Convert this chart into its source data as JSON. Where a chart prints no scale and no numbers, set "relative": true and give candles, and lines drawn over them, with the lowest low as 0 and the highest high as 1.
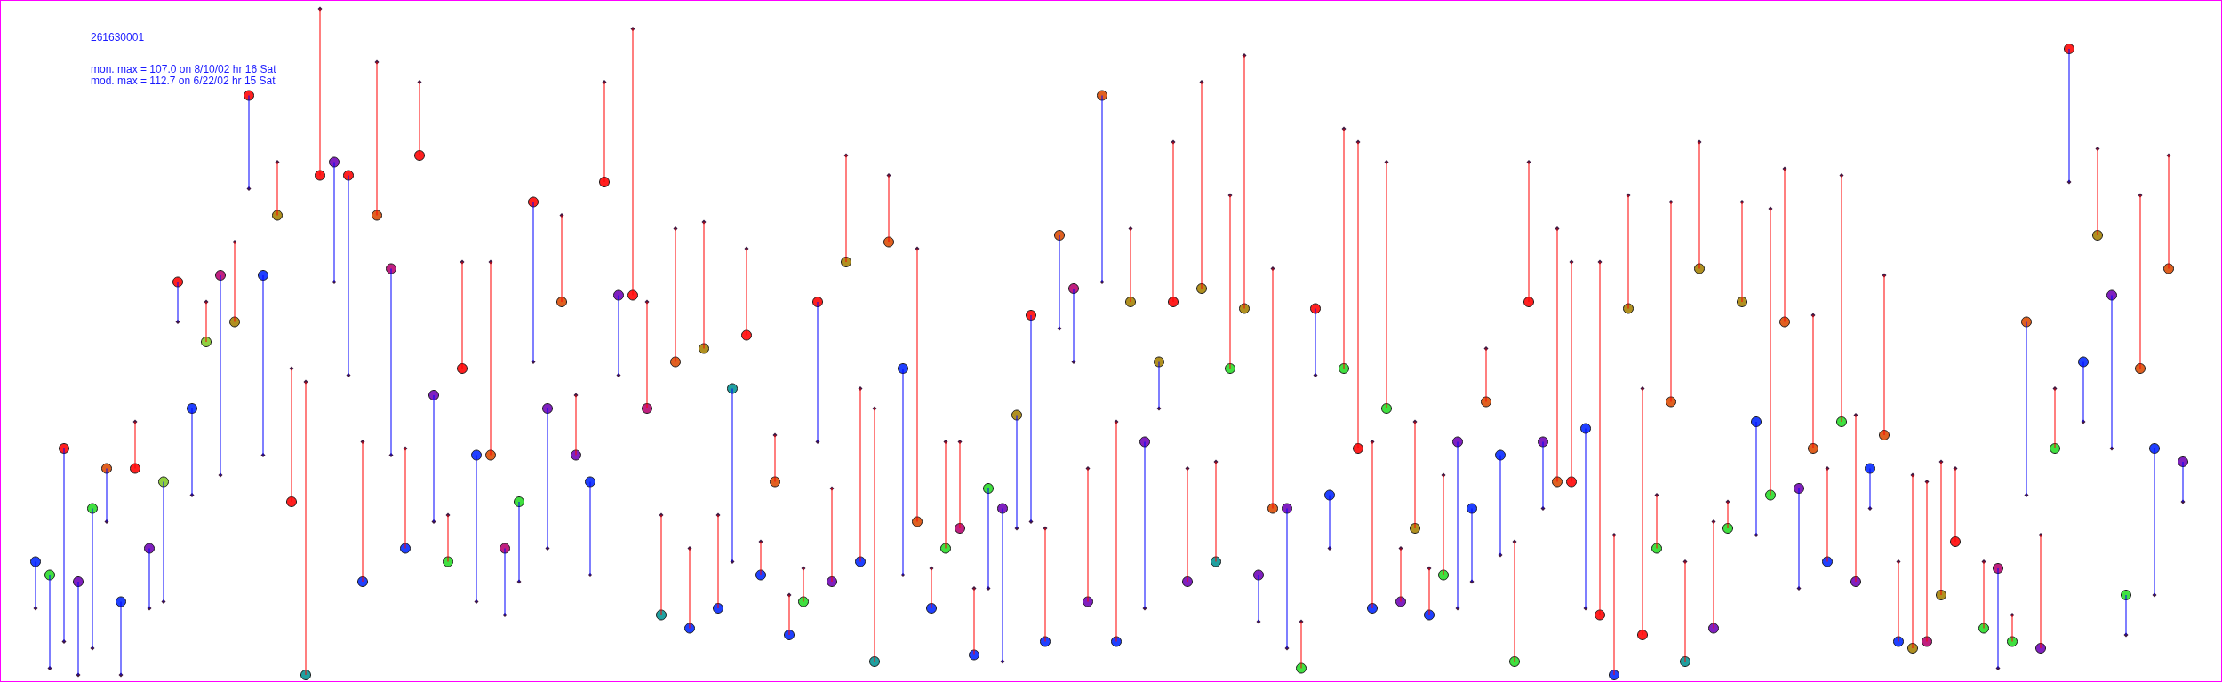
{
  "chart_data": {
    "type": "candlestick",
    "relative": true,
    "title": "261630001",
    "annotations": [
      "mon. max = 107.0 on 8/10/02 hr 16 Sat",
      "mod. max = 112.7 on 6/22/02 hr 15 Sat"
    ],
    "categories": [
      null,
      null,
      null,
      null,
      null,
      null,
      null,
      null,
      null,
      null,
      null,
      null,
      null,
      null,
      null,
      null,
      null,
      null,
      null,
      null,
      null,
      null,
      null,
      null,
      null,
      null,
      null,
      null,
      null,
      null,
      null,
      null,
      null,
      null,
      null,
      null,
      null,
      null,
      null,
      null,
      null,
      null,
      null,
      null,
      null,
      null,
      null,
      null,
      null,
      null,
      null,
      null,
      null,
      null,
      null,
      null,
      null,
      null,
      null,
      null,
      null,
      null,
      null,
      null,
      null,
      null,
      null,
      null,
      null,
      null,
      null,
      null,
      null,
      null,
      null,
      null,
      null,
      null,
      null,
      null,
      null,
      null,
      null,
      null,
      null,
      null,
      null,
      null,
      null,
      null,
      null,
      null,
      null,
      null,
      null,
      null,
      null,
      null,
      null,
      null,
      null,
      null,
      null,
      null,
      null,
      null,
      null,
      null,
      null,
      null,
      null,
      null,
      null,
      null,
      null,
      null,
      null,
      null,
      null,
      null,
      null,
      null,
      null,
      null,
      null,
      null,
      null,
      null,
      null,
      null,
      null,
      null,
      null,
      null,
      null,
      null,
      null,
      null,
      null,
      null,
      null,
      null,
      null,
      null,
      null,
      null,
      null,
      null,
      null,
      null,
      null,
      null
    ],
    "ohlc": [
      [
        0.17,
        0.17,
        0.1,
        0.1
      ],
      [
        0.15,
        0.15,
        0.01,
        0.01
      ],
      [
        0.34,
        0.34,
        0.05,
        0.05
      ],
      [
        0.14,
        0.14,
        0.0,
        0.0
      ],
      [
        0.25,
        0.25,
        0.04,
        0.04
      ],
      [
        0.31,
        0.31,
        0.23,
        0.23
      ],
      [
        0.11,
        0.11,
        0.0,
        0.0
      ],
      [
        0.31,
        0.38,
        0.31,
        0.38
      ],
      [
        0.19,
        0.19,
        0.1,
        0.1
      ],
      [
        0.29,
        0.29,
        0.11,
        0.11
      ],
      [
        0.59,
        0.59,
        0.53,
        0.53
      ],
      [
        0.4,
        0.4,
        0.27,
        0.27
      ],
      [
        0.5,
        0.56,
        0.5,
        0.56
      ],
      [
        0.6,
        0.6,
        0.3,
        0.3
      ],
      [
        0.53,
        0.65,
        0.53,
        0.65
      ],
      [
        0.87,
        0.87,
        0.73,
        0.73
      ],
      [
        0.6,
        0.6,
        0.33,
        0.33
      ],
      [
        0.69,
        0.77,
        0.69,
        0.77
      ],
      [
        0.26,
        0.46,
        0.26,
        0.46
      ],
      [
        0.0,
        0.44,
        0.0,
        0.44
      ],
      [
        0.75,
        1.0,
        0.75,
        1.0
      ],
      [
        0.77,
        0.77,
        0.59,
        0.59
      ],
      [
        0.75,
        0.75,
        0.45,
        0.45
      ],
      [
        0.14,
        0.35,
        0.14,
        0.35
      ],
      [
        0.69,
        0.92,
        0.69,
        0.92
      ],
      [
        0.61,
        0.61,
        0.33,
        0.33
      ],
      [
        0.19,
        0.34,
        0.19,
        0.34
      ],
      [
        0.78,
        0.89,
        0.78,
        0.89
      ],
      [
        0.42,
        0.42,
        0.23,
        0.23
      ],
      [
        0.17,
        0.24,
        0.17,
        0.24
      ],
      [
        0.46,
        0.62,
        0.46,
        0.62
      ],
      [
        0.33,
        0.33,
        0.11,
        0.11
      ],
      [
        0.33,
        0.62,
        0.33,
        0.62
      ],
      [
        0.19,
        0.19,
        0.09,
        0.09
      ],
      [
        0.26,
        0.26,
        0.14,
        0.14
      ],
      [
        0.71,
        0.71,
        0.47,
        0.47
      ],
      [
        0.4,
        0.4,
        0.19,
        0.19
      ],
      [
        0.56,
        0.69,
        0.56,
        0.69
      ],
      [
        0.33,
        0.42,
        0.33,
        0.42
      ],
      [
        0.29,
        0.29,
        0.15,
        0.15
      ],
      [
        0.74,
        0.89,
        0.74,
        0.89
      ],
      [
        0.57,
        0.57,
        0.45,
        0.45
      ],
      [
        0.57,
        0.97,
        0.57,
        0.97
      ],
      [
        0.4,
        0.56,
        0.4,
        0.56
      ],
      [
        0.09,
        0.24,
        0.09,
        0.24
      ],
      [
        0.47,
        0.67,
        0.47,
        0.67
      ],
      [
        0.07,
        0.19,
        0.07,
        0.19
      ],
      [
        0.49,
        0.68,
        0.49,
        0.68
      ],
      [
        0.1,
        0.24,
        0.1,
        0.24
      ],
      [
        0.43,
        0.43,
        0.17,
        0.17
      ],
      [
        0.51,
        0.64,
        0.51,
        0.64
      ],
      [
        0.15,
        0.2,
        0.15,
        0.2
      ],
      [
        0.29,
        0.36,
        0.29,
        0.36
      ],
      [
        0.06,
        0.12,
        0.06,
        0.12
      ],
      [
        0.11,
        0.16,
        0.11,
        0.16
      ],
      [
        0.56,
        0.56,
        0.35,
        0.35
      ],
      [
        0.14,
        0.28,
        0.14,
        0.28
      ],
      [
        0.62,
        0.78,
        0.62,
        0.78
      ],
      [
        0.17,
        0.43,
        0.17,
        0.43
      ],
      [
        0.02,
        0.4,
        0.02,
        0.4
      ],
      [
        0.65,
        0.75,
        0.65,
        0.75
      ],
      [
        0.46,
        0.46,
        0.15,
        0.15
      ],
      [
        0.23,
        0.64,
        0.23,
        0.64
      ],
      [
        0.1,
        0.16,
        0.1,
        0.16
      ],
      [
        0.19,
        0.35,
        0.19,
        0.35
      ],
      [
        0.22,
        0.35,
        0.22,
        0.35
      ],
      [
        0.03,
        0.13,
        0.03,
        0.13
      ],
      [
        0.28,
        0.28,
        0.13,
        0.13
      ],
      [
        0.25,
        0.25,
        0.02,
        0.02
      ],
      [
        0.39,
        0.39,
        0.22,
        0.22
      ],
      [
        0.54,
        0.54,
        0.23,
        0.23
      ],
      [
        0.05,
        0.22,
        0.05,
        0.22
      ],
      [
        0.66,
        0.66,
        0.52,
        0.52
      ],
      [
        0.58,
        0.58,
        0.47,
        0.47
      ],
      [
        0.11,
        0.31,
        0.11,
        0.31
      ],
      [
        0.87,
        0.87,
        0.59,
        0.59
      ],
      [
        0.05,
        0.38,
        0.05,
        0.38
      ],
      [
        0.56,
        0.67,
        0.56,
        0.67
      ],
      [
        0.35,
        0.35,
        0.1,
        0.1
      ],
      [
        0.47,
        0.47,
        0.4,
        0.4
      ],
      [
        0.56,
        0.8,
        0.56,
        0.8
      ],
      [
        0.14,
        0.31,
        0.14,
        0.31
      ],
      [
        0.58,
        0.89,
        0.58,
        0.89
      ],
      [
        0.17,
        0.32,
        0.17,
        0.32
      ],
      [
        0.46,
        0.72,
        0.46,
        0.72
      ],
      [
        0.55,
        0.93,
        0.55,
        0.93
      ],
      [
        0.15,
        0.15,
        0.08,
        0.08
      ],
      [
        0.25,
        0.61,
        0.25,
        0.61
      ],
      [
        0.25,
        0.25,
        0.04,
        0.04
      ],
      [
        0.01,
        0.08,
        0.01,
        0.08
      ],
      [
        0.55,
        0.55,
        0.45,
        0.45
      ],
      [
        0.27,
        0.27,
        0.19,
        0.19
      ],
      [
        0.46,
        0.82,
        0.46,
        0.82
      ],
      [
        0.34,
        0.8,
        0.34,
        0.8
      ],
      [
        0.1,
        0.35,
        0.1,
        0.35
      ],
      [
        0.4,
        0.77,
        0.4,
        0.77
      ],
      [
        0.11,
        0.19,
        0.11,
        0.19
      ],
      [
        0.22,
        0.38,
        0.22,
        0.38
      ],
      [
        0.09,
        0.16,
        0.09,
        0.16
      ],
      [
        0.15,
        0.3,
        0.15,
        0.3
      ],
      [
        0.35,
        0.35,
        0.1,
        0.1
      ],
      [
        0.25,
        0.25,
        0.14,
        0.14
      ],
      [
        0.41,
        0.49,
        0.41,
        0.49
      ],
      [
        0.33,
        0.33,
        0.18,
        0.18
      ],
      [
        0.02,
        0.2,
        0.02,
        0.2
      ],
      [
        0.56,
        0.77,
        0.56,
        0.77
      ],
      [
        0.35,
        0.35,
        0.25,
        0.25
      ],
      [
        0.29,
        0.67,
        0.29,
        0.67
      ],
      [
        0.29,
        0.62,
        0.29,
        0.62
      ],
      [
        0.37,
        0.37,
        0.1,
        0.1
      ],
      [
        0.09,
        0.62,
        0.09,
        0.62
      ],
      [
        0.0,
        0.21,
        0.0,
        0.21
      ],
      [
        0.55,
        0.72,
        0.55,
        0.72
      ],
      [
        0.06,
        0.43,
        0.06,
        0.43
      ],
      [
        0.19,
        0.27,
        0.19,
        0.27
      ],
      [
        0.41,
        0.71,
        0.41,
        0.71
      ],
      [
        0.02,
        0.17,
        0.02,
        0.17
      ],
      [
        0.61,
        0.8,
        0.61,
        0.8
      ],
      [
        0.07,
        0.23,
        0.07,
        0.23
      ],
      [
        0.22,
        0.26,
        0.22,
        0.26
      ],
      [
        0.56,
        0.71,
        0.56,
        0.71
      ],
      [
        0.38,
        0.38,
        0.21,
        0.21
      ],
      [
        0.27,
        0.7,
        0.27,
        0.7
      ],
      [
        0.53,
        0.76,
        0.53,
        0.76
      ],
      [
        0.28,
        0.28,
        0.13,
        0.13
      ],
      [
        0.34,
        0.54,
        0.34,
        0.54
      ],
      [
        0.17,
        0.31,
        0.17,
        0.31
      ],
      [
        0.38,
        0.75,
        0.38,
        0.75
      ],
      [
        0.14,
        0.39,
        0.14,
        0.39
      ],
      [
        0.31,
        0.31,
        0.25,
        0.25
      ],
      [
        0.36,
        0.6,
        0.36,
        0.6
      ],
      [
        0.05,
        0.17,
        0.05,
        0.17
      ],
      [
        0.04,
        0.3,
        0.04,
        0.3
      ],
      [
        0.05,
        0.29,
        0.05,
        0.29
      ],
      [
        0.12,
        0.32,
        0.12,
        0.32
      ],
      [
        0.2,
        0.31,
        0.2,
        0.31
      ],
      null,
      [
        0.07,
        0.17,
        0.07,
        0.17
      ],
      [
        0.16,
        0.16,
        0.01,
        0.01
      ],
      [
        0.05,
        0.09,
        0.05,
        0.09
      ],
      [
        0.53,
        0.53,
        0.27,
        0.27
      ],
      [
        0.04,
        0.21,
        0.04,
        0.21
      ],
      [
        0.34,
        0.43,
        0.34,
        0.43
      ],
      [
        0.94,
        0.94,
        0.74,
        0.74
      ],
      [
        0.47,
        0.47,
        0.38,
        0.38
      ],
      [
        0.66,
        0.79,
        0.66,
        0.79
      ],
      [
        0.57,
        0.57,
        0.34,
        0.34
      ],
      [
        0.12,
        0.12,
        0.06,
        0.06
      ],
      [
        0.46,
        0.72,
        0.46,
        0.72
      ],
      [
        0.34,
        0.34,
        0.12,
        0.12
      ],
      [
        0.61,
        0.78,
        0.61,
        0.78
      ],
      [
        0.32,
        0.32,
        0.26,
        0.26
      ]
    ],
    "colors": [
      "#0000ff",
      "#0000ff",
      "#0000ff",
      "#0000ff",
      "#0000ff",
      "#0000ff",
      "#0000ff",
      "#ff0000",
      "#0000ff",
      "#0000ff",
      "#0000ff",
      "#0000ff",
      "#ff0000",
      "#0000ff",
      "#ff0000",
      "#0000ff",
      "#0000ff",
      "#ff0000",
      "#ff0000",
      "#ff0000",
      "#ff0000",
      "#0000ff",
      "#0000ff",
      "#ff0000",
      "#ff0000",
      "#0000ff",
      "#ff0000",
      "#ff0000",
      "#0000ff",
      "#ff0000",
      "#ff0000",
      "#0000ff",
      "#ff0000",
      "#0000ff",
      "#0000ff",
      "#0000ff",
      "#0000ff",
      "#ff0000",
      "#ff0000",
      "#0000ff",
      "#ff0000",
      "#0000ff",
      "#ff0000",
      "#ff0000",
      "#ff0000",
      "#ff0000",
      "#ff0000",
      "#ff0000",
      "#ff0000",
      "#0000ff",
      "#ff0000",
      "#ff0000",
      "#ff0000",
      "#ff0000",
      "#ff0000",
      "#0000ff",
      "#ff0000",
      "#ff0000",
      "#ff0000",
      "#ff0000",
      "#ff0000",
      "#0000ff",
      "#ff0000",
      "#ff0000",
      "#ff0000",
      "#ff0000",
      "#ff0000",
      "#0000ff",
      "#0000ff",
      "#0000ff",
      "#0000ff",
      "#ff0000",
      "#0000ff",
      "#0000ff",
      "#ff0000",
      "#0000ff",
      "#ff0000",
      "#ff0000",
      "#0000ff",
      "#0000ff",
      "#ff0000",
      "#ff0000",
      "#ff0000",
      "#ff0000",
      "#ff0000",
      "#ff0000",
      "#0000ff",
      "#ff0000",
      "#0000ff",
      "#ff0000",
      "#0000ff",
      "#0000ff",
      "#ff0000",
      "#ff0000",
      "#ff0000",
      "#ff0000",
      "#ff0000",
      "#ff0000",
      "#ff0000",
      "#ff0000",
      "#0000ff",
      "#0000ff",
      "#ff0000",
      "#0000ff",
      "#ff0000",
      "#ff0000",
      "#0000ff",
      "#ff0000",
      "#ff0000",
      "#0000ff",
      "#ff0000",
      "#ff0000",
      "#ff0000",
      "#ff0000",
      "#ff0000",
      "#ff0000",
      "#ff0000",
      "#ff0000",
      "#ff0000",
      "#ff0000",
      "#ff0000",
      "#0000ff",
      "#ff0000",
      "#ff0000",
      "#0000ff",
      "#ff0000",
      "#ff0000",
      "#ff0000",
      "#ff0000",
      "#0000ff",
      "#ff0000",
      "#ff0000",
      "#ff0000",
      "#ff0000",
      "#ff0000",
      "#ff0000",
      null,
      "#ff0000",
      "#0000ff",
      "#ff0000",
      "#0000ff",
      "#ff0000",
      "#ff0000",
      "#0000ff",
      "#0000ff",
      "#ff0000",
      "#0000ff",
      "#0000ff",
      "#ff0000",
      "#0000ff",
      "#ff0000",
      "#0000ff"
    ],
    "series": [
      {
        "type": "scatter",
        "marker": "circle",
        "values": [
          0.17,
          0.15,
          0.34,
          0.14,
          0.25,
          0.31,
          0.11,
          0.31,
          0.19,
          0.29,
          0.59,
          0.4,
          0.5,
          0.6,
          0.53,
          0.87,
          0.6,
          0.69,
          0.26,
          0.0,
          0.75,
          0.77,
          0.75,
          0.14,
          0.69,
          0.61,
          0.19,
          0.78,
          0.42,
          0.17,
          0.46,
          0.33,
          0.33,
          0.19,
          0.26,
          0.71,
          0.4,
          0.56,
          0.33,
          0.29,
          0.74,
          0.57,
          0.57,
          0.4,
          0.09,
          0.47,
          0.07,
          0.49,
          0.1,
          0.43,
          0.51,
          0.15,
          0.29,
          0.06,
          0.11,
          0.56,
          0.14,
          0.62,
          0.17,
          0.02,
          0.65,
          0.46,
          0.23,
          0.1,
          0.19,
          0.22,
          0.03,
          0.28,
          0.25,
          0.39,
          0.54,
          0.05,
          0.66,
          0.58,
          0.11,
          0.87,
          0.05,
          0.56,
          0.35,
          0.47,
          0.56,
          0.14,
          0.58,
          0.17,
          0.46,
          0.55,
          0.15,
          0.25,
          0.25,
          0.01,
          0.55,
          0.27,
          0.46,
          0.34,
          0.1,
          0.4,
          0.11,
          0.22,
          0.09,
          0.15,
          0.35,
          0.25,
          0.41,
          0.33,
          0.02,
          0.56,
          0.35,
          0.29,
          0.29,
          0.37,
          0.09,
          0.0,
          0.55,
          0.06,
          0.19,
          0.41,
          0.02,
          0.61,
          0.07,
          0.22,
          0.56,
          0.38,
          0.27,
          0.53,
          0.28,
          0.34,
          0.17,
          0.38,
          0.14,
          0.31,
          0.36,
          0.05,
          0.04,
          0.05,
          0.12,
          0.2,
          null,
          0.07,
          0.16,
          0.05,
          0.53,
          0.04,
          0.34,
          0.94,
          0.47,
          0.66,
          0.57,
          0.12,
          0.46,
          0.34,
          0.61,
          0.32
        ],
        "colors": [
          "#2040ff",
          "#40e040",
          "#ff2020",
          "#8020c0",
          "#40e040",
          "#e06020",
          "#2040ff",
          "#ff2020",
          "#8020c0",
          "#90d040",
          "#ff2020",
          "#2040ff",
          "#90d040",
          "#c02080",
          "#b09020",
          "#ff2020",
          "#2040ff",
          "#b09020",
          "#ff2020",
          "#20a0a0",
          "#ff2020",
          "#8020c0",
          "#ff2020",
          "#2040ff",
          "#e06020",
          "#c02080",
          "#2040ff",
          "#ff2020",
          "#8020c0",
          "#40e040",
          "#ff2020",
          "#2040ff",
          "#e06020",
          "#c02080",
          "#40e040",
          "#ff2020",
          "#8020c0",
          "#e06020",
          "#8020c0",
          "#2040ff",
          "#ff2020",
          "#8020c0",
          "#ff2020",
          "#c02080",
          "#20a0a0",
          "#e06020",
          "#2040ff",
          "#b09020",
          "#2040ff",
          "#20a0a0",
          "#ff2020",
          "#2040ff",
          "#e06020",
          "#2040ff",
          "#40e040",
          "#ff2020",
          "#8020c0",
          "#b09020",
          "#2040ff",
          "#20a0a0",
          "#e06020",
          "#2040ff",
          "#e06020",
          "#2040ff",
          "#40e040",
          "#c02080",
          "#2040ff",
          "#40e040",
          "#8020c0",
          "#b09020",
          "#ff2020",
          "#2040ff",
          "#e06020",
          "#c02080",
          "#8020c0",
          "#e06020",
          "#2040ff",
          "#b09020",
          "#8020c0",
          "#b09020",
          "#ff2020",
          "#8020c0",
          "#b09020",
          "#20a0a0",
          "#40e040",
          "#b09020",
          "#8020c0",
          "#e06020",
          "#8020c0",
          "#40e040",
          "#ff2020",
          "#2040ff",
          "#40e040",
          "#ff2020",
          "#2040ff",
          "#40e040",
          "#8020c0",
          "#b09020",
          "#2040ff",
          "#40e040",
          "#8020c0",
          "#2040ff",
          "#e06020",
          "#2040ff",
          "#40e040",
          "#ff2020",
          "#8020c0",
          "#e06020",
          "#ff2020",
          "#2040ff",
          "#ff2020",
          "#2040ff",
          "#b09020",
          "#ff2020",
          "#40e040",
          "#e06020",
          "#20a0a0",
          "#b09020",
          "#8020c0",
          "#40e040",
          "#b09020",
          "#2040ff",
          "#40e040",
          "#e06020",
          "#8020c0",
          "#e06020",
          "#2040ff",
          "#40e040",
          "#8020c0",
          "#2040ff",
          "#e06020",
          "#2040ff",
          "#b09020",
          "#c02080",
          "#b09020",
          "#ff2020",
          null,
          "#40e040",
          "#c02080",
          "#40e040",
          "#e06020",
          "#8020c0",
          "#40e040",
          "#ff2020",
          "#2040ff",
          "#b09020",
          "#8020c0",
          "#40e040",
          "#e06020",
          "#2040ff",
          "#e06020",
          "#8020c0"
        ]
      },
      {
        "type": "scatter",
        "marker": "diamond",
        "color": "#401840",
        "values": [
          0.1,
          0.01,
          0.05,
          0.0,
          0.04,
          0.23,
          0.0,
          0.38,
          0.1,
          0.11,
          0.53,
          0.27,
          0.56,
          0.3,
          0.65,
          0.73,
          0.33,
          0.77,
          0.46,
          0.44,
          1.0,
          0.59,
          0.45,
          0.35,
          0.92,
          0.33,
          0.34,
          0.89,
          0.23,
          0.24,
          0.62,
          0.11,
          0.62,
          0.09,
          0.14,
          0.47,
          0.19,
          0.69,
          0.42,
          0.15,
          0.89,
          0.45,
          0.97,
          0.56,
          0.24,
          0.67,
          0.19,
          0.68,
          0.24,
          0.17,
          0.64,
          0.2,
          0.36,
          0.12,
          0.16,
          0.35,
          0.28,
          0.78,
          0.43,
          0.4,
          0.75,
          0.15,
          0.64,
          0.16,
          0.35,
          0.35,
          0.13,
          0.13,
          0.02,
          0.22,
          0.23,
          0.22,
          0.52,
          0.47,
          0.31,
          0.59,
          0.38,
          0.67,
          0.1,
          0.4,
          0.8,
          0.31,
          0.89,
          0.32,
          0.72,
          0.93,
          0.08,
          0.61,
          0.04,
          0.08,
          0.45,
          0.19,
          0.82,
          0.8,
          0.35,
          0.77,
          0.19,
          0.38,
          0.16,
          0.3,
          0.1,
          0.14,
          0.49,
          0.18,
          0.2,
          0.77,
          0.25,
          0.67,
          0.62,
          0.1,
          0.62,
          0.21,
          0.72,
          0.43,
          0.27,
          0.71,
          0.17,
          0.8,
          0.23,
          0.26,
          0.71,
          0.21,
          0.7,
          0.76,
          0.13,
          0.54,
          0.31,
          0.75,
          0.39,
          0.25,
          0.6,
          0.17,
          0.3,
          0.29,
          0.32,
          0.31,
          null,
          0.17,
          0.01,
          0.09,
          0.27,
          0.21,
          0.43,
          0.74,
          0.38,
          0.79,
          0.34,
          0.06,
          0.72,
          0.12,
          0.78,
          0.26
        ]
      }
    ]
  }
}
